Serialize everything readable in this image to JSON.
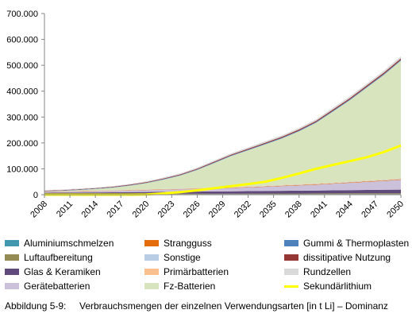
{
  "chart_data": {
    "type": "area",
    "stacked": true,
    "x": [
      2008,
      2010,
      2012,
      2014,
      2016,
      2018,
      2020,
      2022,
      2024,
      2026,
      2028,
      2030,
      2032,
      2034,
      2036,
      2038,
      2040,
      2042,
      2044,
      2046,
      2048,
      2050
    ],
    "x_tick_labels": [
      "2008",
      "2011",
      "2014",
      "2017",
      "2020",
      "2023",
      "2026",
      "2029",
      "2032",
      "2035",
      "2038",
      "2041",
      "2044",
      "2047",
      "2050"
    ],
    "y_tick_labels": [
      "0",
      "100.000",
      "200.000",
      "300.000",
      "400.000",
      "500.000",
      "600.000",
      "700.000"
    ],
    "ylim": [
      0,
      700000
    ],
    "xlim": [
      2008,
      2050
    ],
    "grid": false,
    "legend_position": "bottom",
    "series": [
      {
        "name": "Aluminiumschmelzen",
        "color": "#4198af",
        "values": [
          1500,
          1500,
          1600,
          1600,
          1700,
          1700,
          1800,
          1800,
          1900,
          1900,
          2000,
          2000,
          2100,
          2100,
          2200,
          2200,
          2300,
          2300,
          2400,
          2400,
          2500,
          2500
        ]
      },
      {
        "name": "Luftaufbereitung",
        "color": "#948a54",
        "values": [
          1000,
          1100,
          1200,
          1300,
          1400,
          1500,
          1600,
          1700,
          1800,
          1900,
          2000,
          2100,
          2200,
          2300,
          2400,
          2500,
          2600,
          2700,
          2800,
          2900,
          3000,
          3100
        ]
      },
      {
        "name": "Glas & Keramiken",
        "color": "#604a7b",
        "values": [
          5000,
          5300,
          5600,
          5900,
          6200,
          6600,
          7000,
          7400,
          7800,
          8200,
          8600,
          9000,
          9500,
          10000,
          10500,
          11000,
          11500,
          12000,
          12500,
          13000,
          13500,
          14000
        ]
      },
      {
        "name": "Gerätebatterien",
        "color": "#ccc1da",
        "values": [
          3000,
          3500,
          4000,
          4500,
          5000,
          6000,
          7000,
          8000,
          9000,
          10000,
          11000,
          12500,
          14000,
          16000,
          18000,
          20000,
          22000,
          25000,
          28000,
          31000,
          34000,
          38000
        ]
      },
      {
        "name": "Strangguss",
        "color": "#e46c0a",
        "values": [
          1000,
          1000,
          1100,
          1100,
          1200,
          1200,
          1300,
          1300,
          1400,
          1400,
          1500,
          1500,
          1600,
          1600,
          1700,
          1700,
          1800,
          1800,
          1900,
          1900,
          2000,
          2000
        ]
      },
      {
        "name": "Sonstige",
        "color": "#b9cde5",
        "values": [
          800,
          850,
          900,
          950,
          1000,
          1050,
          1100,
          1150,
          1200,
          1250,
          1300,
          1350,
          1400,
          1450,
          1500,
          1550,
          1600,
          1650,
          1700,
          1750,
          1800,
          1850
        ]
      },
      {
        "name": "Primärbatterien",
        "color": "#fac090",
        "values": [
          600,
          650,
          700,
          750,
          800,
          850,
          900,
          950,
          1000,
          1050,
          1100,
          1150,
          1200,
          1250,
          1300,
          1350,
          1400,
          1450,
          1500,
          1550,
          1600,
          1650
        ]
      },
      {
        "name": "Fz-Batterien",
        "color": "#d7e4bd",
        "values": [
          0,
          1000,
          3000,
          6000,
          10000,
          16000,
          24000,
          36000,
          50000,
          70000,
          95000,
          120000,
          140000,
          160000,
          180000,
          205000,
          235000,
          275000,
          315000,
          360000,
          405000,
          455000
        ]
      },
      {
        "name": "Gummi & Thermoplasten",
        "color": "#4f81bd",
        "values": [
          1200,
          1300,
          1400,
          1500,
          1600,
          1700,
          1800,
          1900,
          2000,
          2100,
          2200,
          2300,
          2400,
          2500,
          2600,
          2700,
          2800,
          2900,
          3000,
          3100,
          3200,
          3300
        ]
      },
      {
        "name": "dissitipative Nutzung",
        "color": "#953735",
        "values": [
          1500,
          1600,
          1700,
          1800,
          1900,
          2000,
          2200,
          2400,
          2600,
          2800,
          3000,
          3200,
          3400,
          3600,
          3800,
          4000,
          4200,
          4400,
          4600,
          4800,
          5000,
          5200
        ]
      },
      {
        "name": "Rundzellen",
        "color": "#d9d9d9",
        "values": [
          2000,
          2200,
          2400,
          2600,
          2800,
          3000,
          3300,
          3600,
          3900,
          4200,
          4500,
          4800,
          5100,
          5400,
          5700,
          6000,
          6300,
          6600,
          6900,
          7200,
          7500,
          7800
        ]
      }
    ],
    "line_series": [
      {
        "name": "Sekundärlithium",
        "color": "#ffff00",
        "values": [
          0,
          0,
          0,
          0,
          0,
          0,
          1000,
          5000,
          10000,
          17000,
          25000,
          33000,
          41000,
          50000,
          65000,
          82000,
          100000,
          115000,
          130000,
          145000,
          165000,
          190000
        ]
      }
    ]
  },
  "legend": {
    "col1": [
      "Aluminiumschmelzen",
      "Luftaufbereitung",
      "Glas & Keramiken",
      "Gerätebatterien"
    ],
    "col2": [
      "Strangguss",
      "Sonstige",
      "Primärbatterien",
      "Fz-Batterien"
    ],
    "col3": [
      "Gummi & Thermoplasten",
      "dissitipative Nutzung",
      "Rundzellen",
      "Sekundärlithium"
    ]
  },
  "caption": {
    "label": "Abbildung 5-9:",
    "text": "Verbrauchsmengen der einzelnen Verwendungsarten [in t Li] – Dominanz"
  }
}
